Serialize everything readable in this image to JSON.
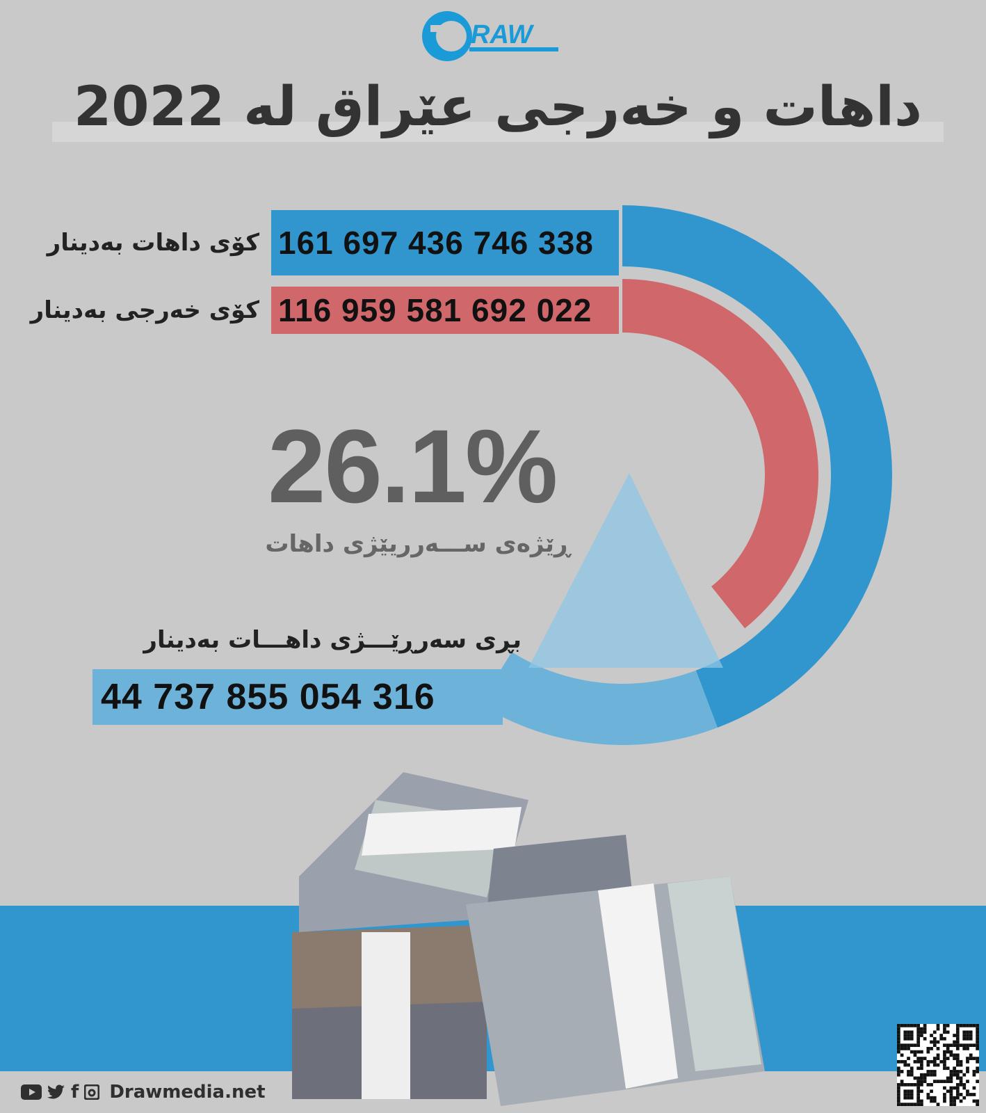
{
  "brand": {
    "logo_text": "DRAW",
    "color": "#1a9bd7"
  },
  "title": "داهات و خەرجی عێراق لە 2022",
  "revenue": {
    "label": "کۆی داهات بەدینار",
    "value": "161 697 436 746 338",
    "color": "#3196ce"
  },
  "expenditure": {
    "label": "کۆی خەرجی بەدینار",
    "value": "116 959 581 692 022",
    "color": "#d0676a"
  },
  "surplus_rate": {
    "value": "26.1%",
    "label": "ڕێژەی ســـەرریێژی داهات"
  },
  "surplus": {
    "label": "بڕی سەرڕێـــژی داهـــات بەدینار",
    "value": "44 737 855 054 316",
    "color": "#6db3d9"
  },
  "chart_data": {
    "type": "radial-bar",
    "series": [
      {
        "name": "کۆی داهات بەدینار",
        "value": 161697436746338
      },
      {
        "name": "کۆی خەرجی بەدینار",
        "value": 116959581692022
      },
      {
        "name": "بڕی سەرڕێـــژی داهـــات بەدینار",
        "value": 44737855054316
      }
    ],
    "surplus_percent": 26.1
  },
  "footer": {
    "website": "Drawmedia.net",
    "icons": [
      "youtube-icon",
      "twitter-icon",
      "facebook-icon",
      "instagram-icon"
    ]
  }
}
